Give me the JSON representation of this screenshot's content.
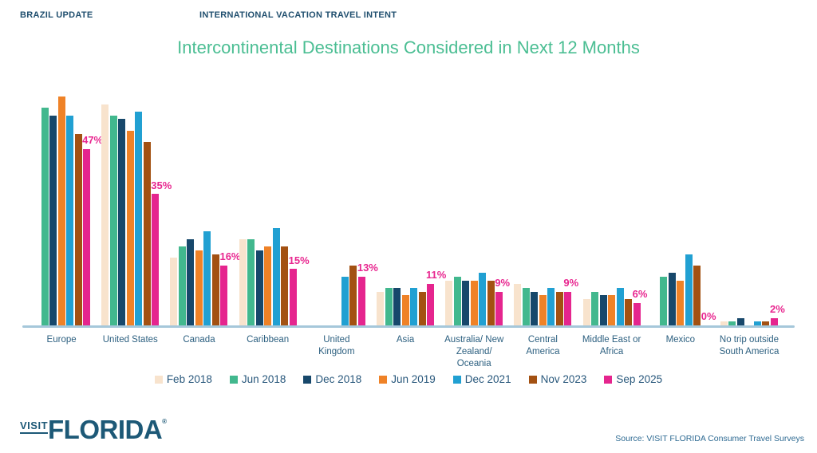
{
  "header": {
    "left": "BRAZIL UPDATE",
    "right": "INTERNATIONAL VACATION TRAVEL INTENT"
  },
  "title": "Intercontinental Destinations Considered in Next 12 Months",
  "chart_data": {
    "type": "bar",
    "title": "Intercontinental Destinations Considered in Next 12 Months",
    "grid": false,
    "y_axis_visible": false,
    "ylim": [
      0,
      65
    ],
    "unit": "%",
    "legend_position": "bottom",
    "categories": [
      "Europe",
      "United States",
      "Canada",
      "Caribbean",
      "United\nKingdom",
      "Asia",
      "Australia/ New\nZealand/\nOceania",
      "Central\nAmerica",
      "Middle East or\nAfrica",
      "Mexico",
      "No trip outside\nSouth America"
    ],
    "series": [
      {
        "name": "Feb 2018",
        "color": "#F8E3CD",
        "values": [
          null,
          59,
          18,
          23,
          null,
          9,
          12,
          11,
          7,
          null,
          1
        ]
      },
      {
        "name": "Jun 2018",
        "color": "#42B88E",
        "values": [
          58,
          56,
          21,
          23,
          null,
          10,
          13,
          10,
          9,
          13,
          1
        ]
      },
      {
        "name": "Dec 2018",
        "color": "#17486B",
        "values": [
          56,
          55,
          23,
          20,
          null,
          10,
          12,
          9,
          8,
          14,
          2
        ]
      },
      {
        "name": "Jun 2019",
        "color": "#EF8227",
        "values": [
          61,
          52,
          20,
          21,
          null,
          8,
          12,
          8,
          8,
          12,
          null
        ]
      },
      {
        "name": "Dec 2021",
        "color": "#21A0D2",
        "values": [
          56,
          57,
          25,
          26,
          13,
          10,
          14,
          10,
          10,
          19,
          1
        ]
      },
      {
        "name": "Nov 2023",
        "color": "#A35112",
        "values": [
          51,
          49,
          19,
          21,
          16,
          9,
          12,
          9,
          7,
          16,
          1
        ]
      },
      {
        "name": "Sep 2025",
        "color": "#E5258E",
        "values": [
          47,
          35,
          16,
          15,
          13,
          11,
          9,
          9,
          6,
          0,
          2
        ]
      }
    ],
    "data_labels": {
      "series": "Sep 2025",
      "color": "#E8268F",
      "values": [
        "47%",
        "35%",
        "16%",
        "15%",
        "13%",
        "11%",
        "9%",
        "9%",
        "6%",
        "0%",
        "2%"
      ]
    }
  },
  "footer": {
    "logo_visit": "VISIT",
    "logo_florida": "FLORIDA",
    "logo_mark": "®",
    "source": "Source: VISIT FLORIDA Consumer Travel Surveys"
  }
}
